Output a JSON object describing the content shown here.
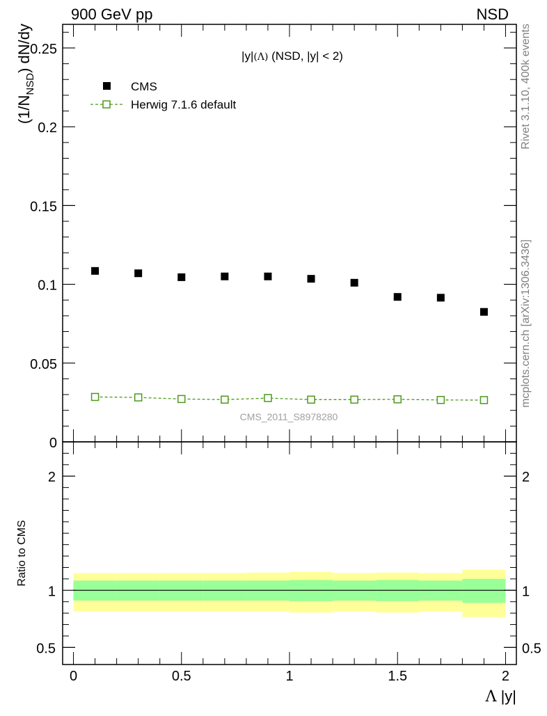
{
  "header": {
    "left": "900 GeV pp",
    "right": "NSD"
  },
  "side_labels": {
    "rivet": "Rivet 3.1.10,  400k events",
    "mcplots": "mcplots.cern.ch [arXiv:1306.3436]"
  },
  "chart_data": [
    {
      "type": "scatter",
      "panel": "main",
      "title": "|y|(Λ) (NSD, |y| < 2)",
      "title_parts": {
        "a": "|y|",
        "b": "(Λ)",
        "c": " (NSD, |y| < 2)"
      },
      "ylabel_parts": {
        "a": "(1/N",
        "sub": "NSD",
        "b": ") dN/dy"
      },
      "watermark": "CMS_2011_S8978280",
      "xlim": [
        -0.05,
        2.05
      ],
      "ylim": [
        0,
        0.265
      ],
      "yticks": [
        {
          "v": 0,
          "label": "0"
        },
        {
          "v": 0.05,
          "label": "0.05"
        },
        {
          "v": 0.1,
          "label": "0.1"
        },
        {
          "v": 0.15,
          "label": "0.15"
        },
        {
          "v": 0.2,
          "label": "0.2"
        },
        {
          "v": 0.25,
          "label": "0.25"
        }
      ],
      "legend_position": "top-left",
      "x": [
        0.1,
        0.3,
        0.5,
        0.7,
        0.9,
        1.1,
        1.3,
        1.5,
        1.7,
        1.9
      ],
      "series": [
        {
          "name": "CMS",
          "marker": "filled-square",
          "color": "#000000",
          "values": [
            0.1085,
            0.107,
            0.1045,
            0.105,
            0.105,
            0.1035,
            0.101,
            0.092,
            0.0915,
            0.0825
          ]
        },
        {
          "name": "Herwig 7.1.6 default",
          "marker": "open-square",
          "color": "#4a9a1a",
          "line": "dashed",
          "values": [
            0.0285,
            0.0282,
            0.0272,
            0.0268,
            0.0278,
            0.0268,
            0.0268,
            0.027,
            0.0266,
            0.0265
          ]
        }
      ]
    },
    {
      "type": "area",
      "panel": "ratio",
      "ylabel": "Ratio to CMS",
      "xlabel": "Λ |y|",
      "xlabel_parts": {
        "a": "Λ",
        "b": " |y|"
      },
      "xlim": [
        -0.05,
        2.05
      ],
      "ylim": [
        0.35,
        2.3
      ],
      "yticks": [
        {
          "v": 0.5,
          "label": "0.5"
        },
        {
          "v": 1,
          "label": "1"
        },
        {
          "v": 2,
          "label": "2"
        }
      ],
      "xticks": [
        {
          "v": 0,
          "label": "0"
        },
        {
          "v": 0.5,
          "label": "0.5"
        },
        {
          "v": 1,
          "label": "1"
        },
        {
          "v": 1.5,
          "label": "1.5"
        },
        {
          "v": 2,
          "label": "2"
        }
      ],
      "reference_line": 1,
      "bins": [
        {
          "lo": 0.0,
          "hi": 0.2,
          "stat": [
            0.91,
            1.085
          ],
          "total": [
            0.815,
            1.15
          ]
        },
        {
          "lo": 0.2,
          "hi": 0.4,
          "stat": [
            0.91,
            1.085
          ],
          "total": [
            0.815,
            1.15
          ]
        },
        {
          "lo": 0.4,
          "hi": 0.6,
          "stat": [
            0.91,
            1.085
          ],
          "total": [
            0.815,
            1.15
          ]
        },
        {
          "lo": 0.6,
          "hi": 0.8,
          "stat": [
            0.91,
            1.085
          ],
          "total": [
            0.815,
            1.15
          ]
        },
        {
          "lo": 0.8,
          "hi": 1.0,
          "stat": [
            0.91,
            1.085
          ],
          "total": [
            0.815,
            1.155
          ]
        },
        {
          "lo": 1.0,
          "hi": 1.2,
          "stat": [
            0.905,
            1.09
          ],
          "total": [
            0.805,
            1.16
          ]
        },
        {
          "lo": 1.2,
          "hi": 1.4,
          "stat": [
            0.91,
            1.085
          ],
          "total": [
            0.815,
            1.15
          ]
        },
        {
          "lo": 1.4,
          "hi": 1.6,
          "stat": [
            0.905,
            1.09
          ],
          "total": [
            0.805,
            1.155
          ]
        },
        {
          "lo": 1.6,
          "hi": 1.8,
          "stat": [
            0.91,
            1.085
          ],
          "total": [
            0.815,
            1.15
          ]
        },
        {
          "lo": 1.8,
          "hi": 2.0,
          "stat": [
            0.89,
            1.1
          ],
          "total": [
            0.765,
            1.18
          ]
        }
      ],
      "colors": {
        "stat_band": "#99ff99",
        "total_band": "#ffff99"
      }
    }
  ]
}
